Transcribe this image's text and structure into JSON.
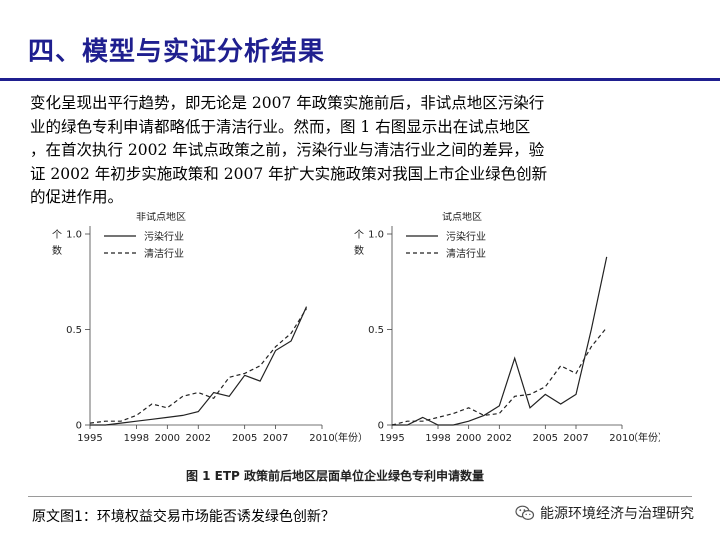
{
  "slide": {
    "title": "四、模型与实证分析结果",
    "paragraph_lines": [
      "变化呈现出平行趋势，即无论是 2007 年政策实施前后，非试点地区污染行",
      "业的绿色专利申请都略低于清洁行业。然而，图 1 右图显示出在试点地区",
      "，在首次执行 2002 年试点政策之前，污染行业与清洁行业之间的差异，验",
      "证 2002 年初步实施政策和 2007 年扩大实施政策对我国上市企业绿色创新",
      "的促进作用。"
    ],
    "source": "原文图1：环境权益交易市场能否诱发绿色创新？",
    "brand": "能源环境经济与治理研究"
  },
  "figure": {
    "caption": "图 1   ETP 政策前后地区层面单位企业绿色专利申请数量",
    "ylabel_chars": [
      "个",
      "数"
    ],
    "xunit": "（年份）",
    "series_styles": [
      "solid",
      "dashed"
    ],
    "line_color": "#222222"
  },
  "chart_data": [
    {
      "type": "line",
      "title": "非试点地区",
      "x": [
        1995,
        1996,
        1997,
        1998,
        1999,
        2000,
        2001,
        2002,
        2003,
        2004,
        2005,
        2006,
        2007,
        2008,
        2009
      ],
      "xticks": [
        1995,
        1998,
        2000,
        2002,
        2005,
        2007,
        2010
      ],
      "yticks": [
        0,
        0.5,
        1.0
      ],
      "ytick_labels": [
        "0",
        "0.5",
        "1.0"
      ],
      "xlim": [
        1995,
        2010
      ],
      "ylim": [
        0,
        1.0
      ],
      "legend_position": "top-left",
      "series": [
        {
          "name": "污染行业",
          "values": [
            0.0,
            0.0,
            0.01,
            0.02,
            0.03,
            0.04,
            0.05,
            0.07,
            0.17,
            0.15,
            0.26,
            0.23,
            0.39,
            0.44,
            0.62
          ]
        },
        {
          "name": "清洁行业",
          "values": [
            0.01,
            0.02,
            0.02,
            0.05,
            0.11,
            0.09,
            0.15,
            0.17,
            0.14,
            0.25,
            0.27,
            0.31,
            0.41,
            0.48,
            0.61
          ]
        }
      ]
    },
    {
      "type": "line",
      "title": "试点地区",
      "x": [
        1995,
        1996,
        1997,
        1998,
        1999,
        2000,
        2001,
        2002,
        2003,
        2004,
        2005,
        2006,
        2007,
        2008,
        2009
      ],
      "xticks": [
        1995,
        1998,
        2000,
        2002,
        2005,
        2007,
        2010
      ],
      "yticks": [
        0,
        0.5,
        1.0
      ],
      "ytick_labels": [
        "0",
        "0.5",
        "1.0"
      ],
      "xlim": [
        1995,
        2010
      ],
      "ylim": [
        0,
        1.0
      ],
      "legend_position": "top-left",
      "series": [
        {
          "name": "污染行业",
          "values": [
            0.0,
            0.0,
            0.04,
            0.0,
            0.0,
            0.02,
            0.05,
            0.1,
            0.35,
            0.09,
            0.16,
            0.11,
            0.16,
            0.5,
            0.88
          ]
        },
        {
          "name": "清洁行业",
          "values": [
            0.0,
            0.02,
            0.02,
            0.04,
            0.06,
            0.09,
            0.05,
            0.06,
            0.15,
            0.16,
            0.2,
            0.31,
            0.27,
            0.41,
            0.51
          ]
        }
      ]
    }
  ]
}
